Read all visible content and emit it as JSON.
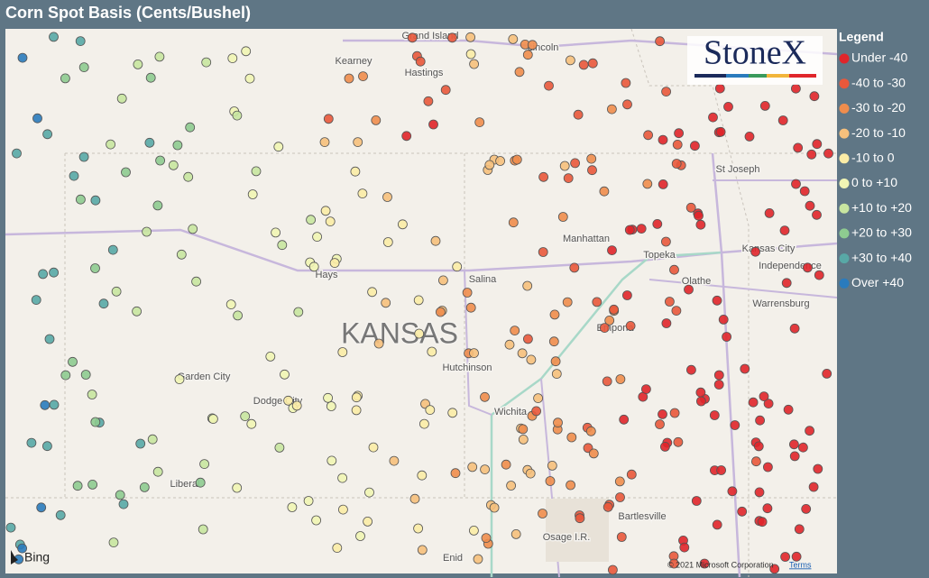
{
  "header": {
    "title": "Corn Spot Basis (Cents/Bushel)"
  },
  "legend": {
    "title": "Legend",
    "items": [
      {
        "label": "Under -40",
        "color": "#e0252a"
      },
      {
        "label": "-40 to -30",
        "color": "#e9583b"
      },
      {
        "label": "-30 to -20",
        "color": "#f08d4d"
      },
      {
        "label": "-20 to -10",
        "color": "#f6c07c"
      },
      {
        "label": "-10 to 0",
        "color": "#fbeca6"
      },
      {
        "label": "0 to +10",
        "color": "#f1f5b4"
      },
      {
        "label": "+10 to +20",
        "color": "#c8e5a0"
      },
      {
        "label": "+20 to +30",
        "color": "#8ecb90"
      },
      {
        "label": "+30 to +40",
        "color": "#58a8a6"
      },
      {
        "label": "Over +40",
        "color": "#2a7bbd"
      }
    ]
  },
  "map": {
    "labels": [
      "Grand Island",
      "Kearney",
      "Hastings",
      "Lincoln",
      "St Joseph",
      "Kansas City",
      "Independence",
      "Manhattan",
      "Topeka",
      "Olathe",
      "Hays",
      "Salina",
      "KANSAS",
      "Emporia",
      "Warrensburg",
      "Garden City",
      "Dodge City",
      "Hutchinson",
      "Wichita",
      "Liberal",
      "Bartlesville",
      "Osage I.R.",
      "Enid"
    ],
    "brand": "StoneX",
    "provider": "Bing",
    "attribution": "© 2021 Microsoft Corporation",
    "terms": "Terms"
  }
}
